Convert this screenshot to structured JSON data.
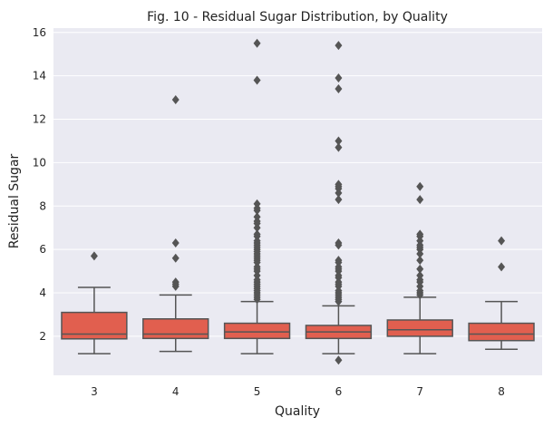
{
  "chart_data": {
    "type": "box",
    "title": "Fig. 10 - Residual Sugar Distribution, by Quality",
    "xlabel": "Quality",
    "ylabel": "Residual Sugar",
    "ylim": [
      0.2,
      16.2
    ],
    "yticks": [
      2,
      4,
      6,
      8,
      10,
      12,
      14,
      16
    ],
    "grid": true,
    "colors": {
      "box_fill": "#e15f4f",
      "box_edge": "#555555",
      "plot_bg": "#eaeaf2",
      "grid": "#ffffff"
    },
    "categories": [
      "3",
      "4",
      "5",
      "6",
      "7",
      "8"
    ],
    "boxes": [
      {
        "category": "3",
        "whisker_low": 1.2,
        "q1": 1.88,
        "median": 2.1,
        "q3": 3.1,
        "whisker_high": 4.25,
        "outliers": [
          5.7
        ]
      },
      {
        "category": "4",
        "whisker_low": 1.3,
        "q1": 1.9,
        "median": 2.1,
        "q3": 2.8,
        "whisker_high": 3.9,
        "outliers": [
          4.3,
          4.4,
          4.5,
          5.6,
          6.3,
          12.9
        ]
      },
      {
        "category": "5",
        "whisker_low": 1.2,
        "q1": 1.9,
        "median": 2.2,
        "q3": 2.6,
        "whisker_high": 3.6,
        "outliers": [
          3.7,
          3.8,
          3.9,
          4.0,
          4.1,
          4.2,
          4.3,
          4.4,
          4.5,
          4.6,
          4.8,
          5.0,
          5.1,
          5.2,
          5.4,
          5.5,
          5.6,
          5.7,
          5.8,
          5.9,
          6.0,
          6.1,
          6.2,
          6.3,
          6.4,
          6.6,
          6.7,
          7.0,
          7.2,
          7.3,
          7.5,
          7.8,
          7.9,
          8.1,
          13.8,
          15.5
        ]
      },
      {
        "category": "6",
        "whisker_low": 1.2,
        "q1": 1.9,
        "median": 2.2,
        "q3": 2.5,
        "whisker_high": 3.4,
        "outliers": [
          0.9,
          3.6,
          3.7,
          3.8,
          3.9,
          4.0,
          4.1,
          4.3,
          4.4,
          4.5,
          4.7,
          4.8,
          5.0,
          5.1,
          5.2,
          5.4,
          5.5,
          6.2,
          6.3,
          8.3,
          8.6,
          8.8,
          8.9,
          9.0,
          10.7,
          11.0,
          13.4,
          13.9,
          15.4
        ]
      },
      {
        "category": "7",
        "whisker_low": 1.2,
        "q1": 2.0,
        "median": 2.3,
        "q3": 2.75,
        "whisker_high": 3.8,
        "outliers": [
          3.9,
          4.0,
          4.1,
          4.3,
          4.5,
          4.6,
          4.8,
          5.1,
          5.5,
          5.8,
          6.0,
          6.1,
          6.2,
          6.4,
          6.6,
          6.7,
          8.3,
          8.9
        ]
      },
      {
        "category": "8",
        "whisker_low": 1.4,
        "q1": 1.8,
        "median": 2.1,
        "q3": 2.6,
        "whisker_high": 3.6,
        "outliers": [
          5.2,
          6.4
        ]
      }
    ]
  }
}
